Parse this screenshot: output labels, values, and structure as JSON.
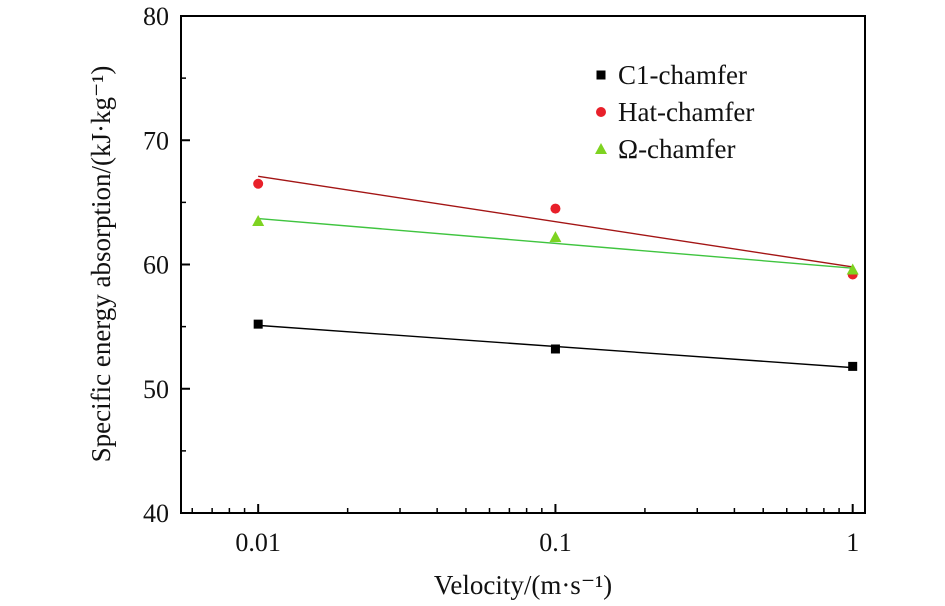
{
  "chart_data": {
    "type": "scatter",
    "xscale": "log",
    "xlabel": "Velocity/(m·s⁻¹)",
    "ylabel": "Specific energy absorption/(kJ·kg⁻¹)",
    "xlim": [
      0.0055,
      1.1
    ],
    "ylim": [
      40,
      80
    ],
    "xticks": [
      0.01,
      0.1,
      1
    ],
    "xtick_labels": [
      "0.01",
      "0.1",
      "1"
    ],
    "yticks": [
      40,
      50,
      60,
      70,
      80
    ],
    "ytick_labels": [
      "40",
      "50",
      "60",
      "70",
      "80"
    ],
    "grid": false,
    "legend_position": "top-right",
    "series": [
      {
        "name": "C1-chamfer",
        "marker": "square",
        "color": "#000000",
        "line_color": "#000000",
        "x": [
          0.01,
          0.1,
          1
        ],
        "y": [
          55.2,
          53.2,
          51.8
        ],
        "fit": [
          55.1,
          51.7
        ]
      },
      {
        "name": "Hat-chamfer",
        "marker": "circle",
        "color": "#e8202a",
        "line_color": "#a31515",
        "x": [
          0.01,
          0.1,
          1
        ],
        "y": [
          66.5,
          64.5,
          59.2
        ],
        "fit": [
          67.1,
          59.8
        ]
      },
      {
        "name": "Ω-chamfer",
        "marker": "triangle",
        "color": "#7ed321",
        "line_color": "#3fc43f",
        "x": [
          0.01,
          0.1,
          1
        ],
        "y": [
          63.5,
          62.2,
          59.6
        ],
        "fit": [
          63.7,
          59.7
        ]
      }
    ]
  }
}
